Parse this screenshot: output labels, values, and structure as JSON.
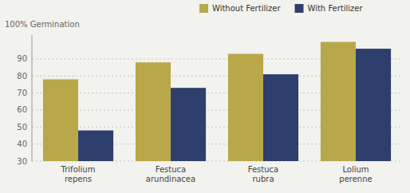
{
  "chart_data": {
    "type": "bar",
    "ylabel": "100% Germination",
    "categories": [
      "Trifolium\nrepens",
      "Festuca\narundinacea",
      "Festuca\nrubra",
      "Lolium\nperenne"
    ],
    "series": [
      {
        "name": "Without Fertilizer",
        "color": "#b8a84a",
        "values": [
          78,
          88,
          93,
          100
        ]
      },
      {
        "name": "With Fertilizer",
        "color": "#2e3f6e",
        "values": [
          48,
          73,
          81,
          96
        ]
      }
    ],
    "ylim": [
      30,
      104
    ],
    "yticks": [
      30,
      40,
      50,
      60,
      70,
      80,
      90
    ],
    "grid": true,
    "legend": "top"
  }
}
